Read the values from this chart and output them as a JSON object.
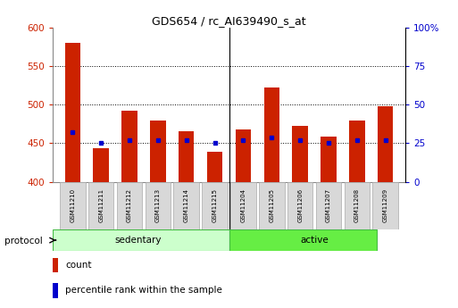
{
  "title": "GDS654 / rc_AI639490_s_at",
  "samples": [
    "GSM11210",
    "GSM11211",
    "GSM11212",
    "GSM11213",
    "GSM11214",
    "GSM11215",
    "GSM11204",
    "GSM11205",
    "GSM11206",
    "GSM11207",
    "GSM11208",
    "GSM11209"
  ],
  "count_values": [
    580,
    444,
    492,
    480,
    465,
    439,
    468,
    522,
    472,
    459,
    480,
    498
  ],
  "percentile_values": [
    32,
    25,
    27,
    27,
    27,
    25,
    27,
    29,
    27,
    25,
    27,
    27
  ],
  "baseline": 400,
  "ylim_left": [
    400,
    600
  ],
  "ylim_right": [
    0,
    100
  ],
  "yticks_left": [
    400,
    450,
    500,
    550,
    600
  ],
  "yticks_right": [
    0,
    25,
    50,
    75,
    100
  ],
  "sedentary_label": "sedentary",
  "active_label": "active",
  "protocol_label": "protocol",
  "bar_color": "#cc2200",
  "percentile_color": "#0000cc",
  "sedentary_bg": "#ccffcc",
  "active_bg": "#66ee44",
  "grid_color": "#000000",
  "tick_label_color_left": "#cc2200",
  "tick_label_color_right": "#0000cc",
  "bar_width": 0.55,
  "legend_count": "count",
  "legend_percentile": "percentile rank within the sample",
  "n_sedentary": 6,
  "n_active": 6
}
